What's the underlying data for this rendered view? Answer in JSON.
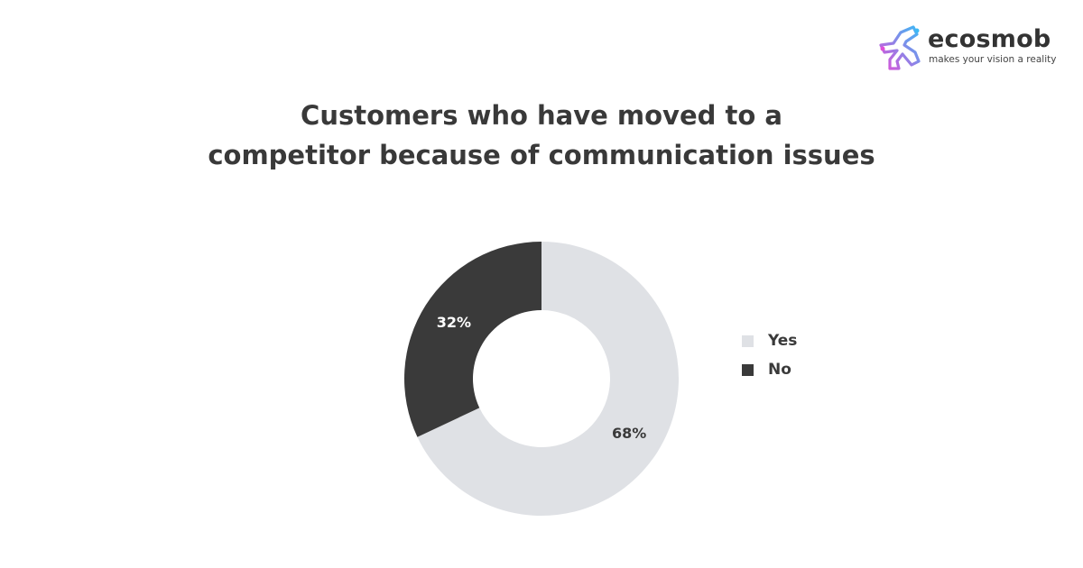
{
  "logo": {
    "wordmark": "ecosmob",
    "tagline": "makes your vision a reality",
    "colors": [
      "#e04fd8",
      "#3db8f5"
    ]
  },
  "title_lines": [
    "Customers who have moved to a",
    "competitor because of communication issues"
  ],
  "chart_data": {
    "type": "pie",
    "subtype": "donut",
    "title": "Customers who have moved to a competitor because of communication issues",
    "categories": [
      "Yes",
      "No"
    ],
    "values": [
      68,
      32
    ],
    "labels": [
      "68%",
      "32%"
    ],
    "colors": [
      "#dfe1e5",
      "#3a3a3a"
    ],
    "label_colors": [
      "#3a3a3a",
      "#ffffff"
    ],
    "legend": {
      "position": "right",
      "entries": [
        "Yes",
        "No"
      ]
    }
  }
}
